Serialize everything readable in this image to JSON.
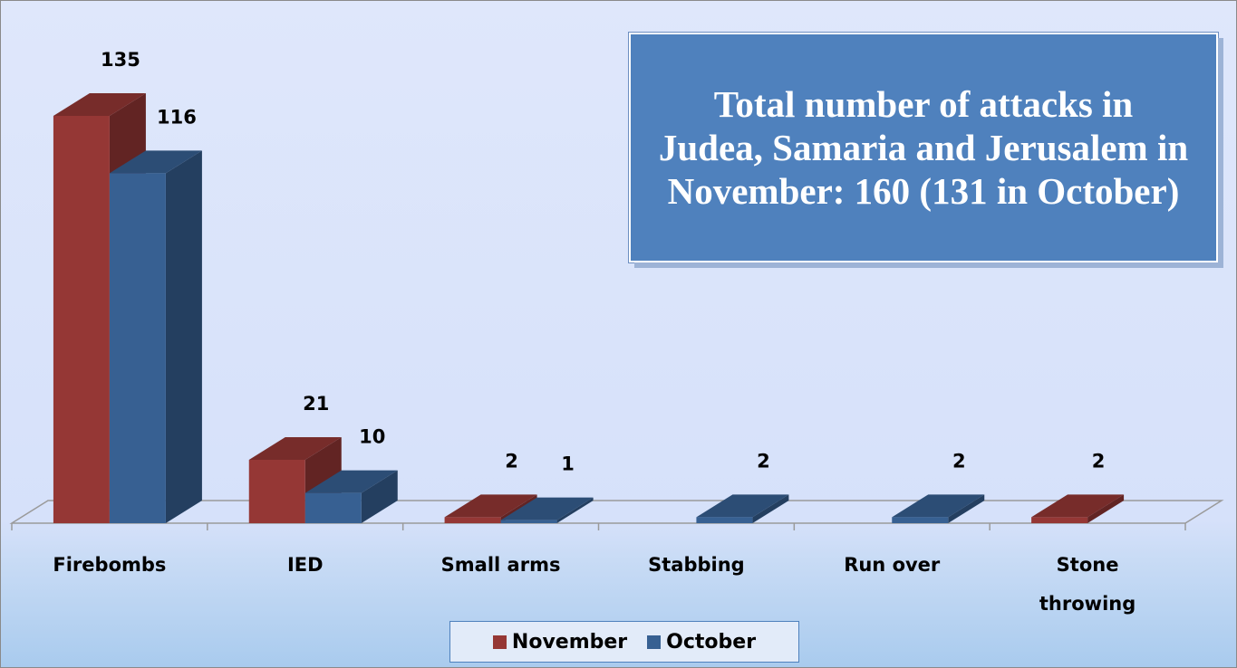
{
  "chart_data": {
    "type": "bar3d",
    "title": "Total number of attacks in Judea, Samaria and Jerusalem in November: 160 (131 in October)",
    "categories": [
      "Firebombs",
      "IED",
      "Small arms",
      "Stabbing",
      "Run over",
      "Stone throwing"
    ],
    "series": [
      {
        "name": "November",
        "color": "#953735",
        "values": [
          135,
          21,
          2,
          null,
          null,
          2
        ]
      },
      {
        "name": "October",
        "color": "#376092",
        "values": [
          116,
          10,
          1,
          2,
          2,
          null
        ]
      }
    ],
    "legend": "bottom"
  }
}
